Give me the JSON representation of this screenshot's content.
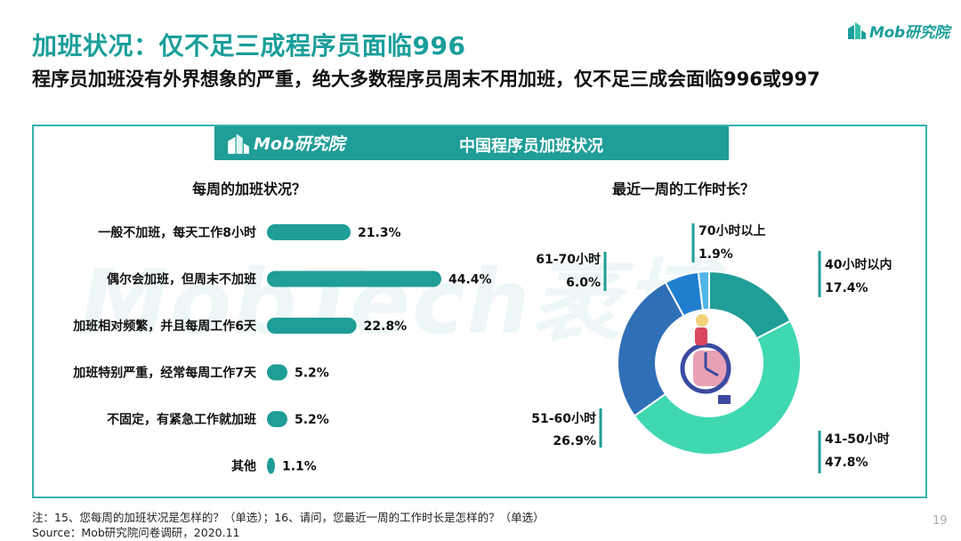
{
  "title": "加班状况：仅不足三成程序员面临996",
  "subtitle": "程序员加班没有外界想象的严重，绝大多数程序员周末不用加班，仅不足三成会面临996或997",
  "logo_text": "Mob研究院",
  "banner": {
    "logo_text": "Mob研究院",
    "title": "中国程序员加班状况"
  },
  "watermark": "MobTech袤博",
  "footer": {
    "note": "注：15、您每周的加班状况是怎样的？（单选）；16、请问，您最近一周的工作时长是怎样的？（单选）",
    "source": "Source：Mob研究院问卷调研，2020.11"
  },
  "page_number": "19",
  "colors": {
    "teal": "#1a9e9a",
    "bar": "#1f9d97",
    "frame": "#34b3ad"
  },
  "chart_data": [
    {
      "type": "bar",
      "orientation": "horizontal",
      "title": "每周的加班状况？",
      "categories": [
        "一般不加班，每天工作8小时",
        "偶尔会加班，但周末不加班",
        "加班相对频繁，并且每周工作6天",
        "加班特别严重，经常每周工作7天",
        "不固定，有紧急工作就加班",
        "其他"
      ],
      "values": [
        21.3,
        44.4,
        22.8,
        5.2,
        5.2,
        1.1
      ],
      "labels": [
        "21.3%",
        "44.4%",
        "22.8%",
        "5.2%",
        "5.2%",
        "1.1%"
      ],
      "unit": "%",
      "color": "#1f9d97"
    },
    {
      "type": "pie",
      "style": "donut",
      "title": "最近一周的工作时长？",
      "slices": [
        {
          "label": "40小时以内",
          "value": 17.4,
          "value_label": "17.4%",
          "color": "#1f9d97"
        },
        {
          "label": "41-50小时",
          "value": 47.8,
          "value_label": "47.8%",
          "color": "#3fd8b1"
        },
        {
          "label": "51-60小时",
          "value": 26.9,
          "value_label": "26.9%",
          "color": "#2f6fb6"
        },
        {
          "label": "61-70小时",
          "value": 6.0,
          "value_label": "6.0%",
          "color": "#1f7fce"
        },
        {
          "label": "70小时以上",
          "value": 1.9,
          "value_label": "1.9%",
          "color": "#52b5e8"
        }
      ],
      "start": "top",
      "direction": "clockwise"
    }
  ]
}
